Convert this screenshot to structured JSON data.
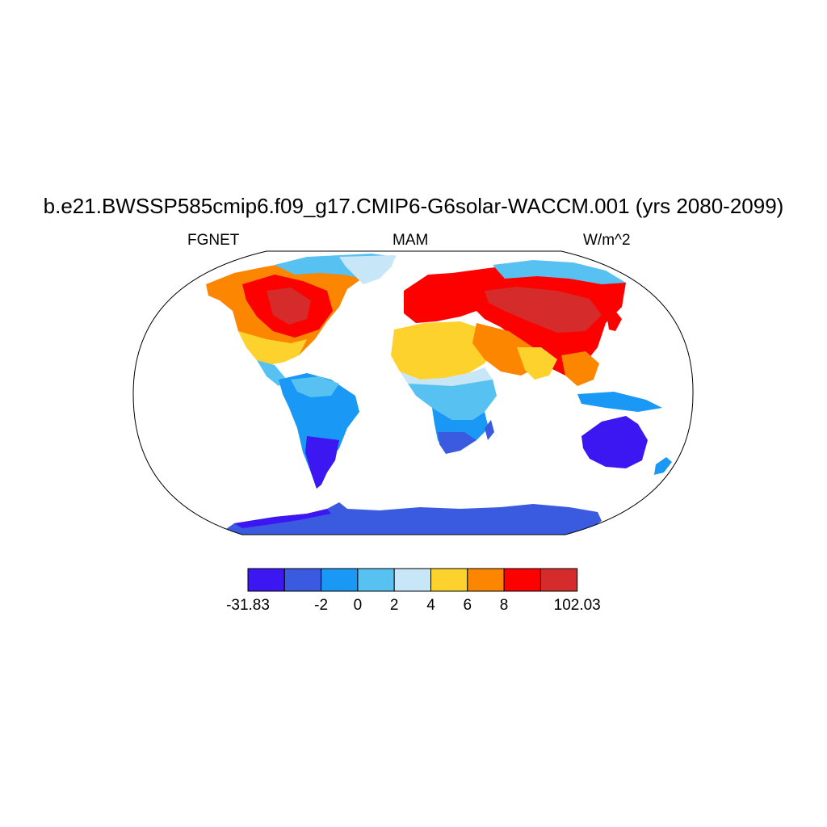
{
  "title": "b.e21.BWSSP585cmip6.f09_g17.CMIP6-G6solar-WACCM.001 (yrs 2080-2099)",
  "left_string": "FGNET",
  "center_string": "MAM",
  "right_string": "W/m^2",
  "colorbar": {
    "colors": [
      "#3d17f2",
      "#3a5be0",
      "#1a98f5",
      "#57c1f2",
      "#c7e6f7",
      "#fdd22d",
      "#fd8600",
      "#fd0000",
      "#d52b2b"
    ],
    "labels": [
      "-31.83",
      "-2",
      "0",
      "2",
      "4",
      "6",
      "8",
      "102.03"
    ]
  },
  "map_regions": [
    {
      "name": "north-america",
      "class": "4-6 / 8+"
    },
    {
      "name": "south-america",
      "class": "-2 to 2"
    },
    {
      "name": "sahara",
      "class": "4-6"
    },
    {
      "name": "southern-africa",
      "class": "-31.83 to 0"
    },
    {
      "name": "eurasia",
      "class": "6 to 102.03"
    },
    {
      "name": "australia",
      "class": "-31.83 to -2"
    },
    {
      "name": "antarctica",
      "class": "-31.83 to -2"
    }
  ]
}
